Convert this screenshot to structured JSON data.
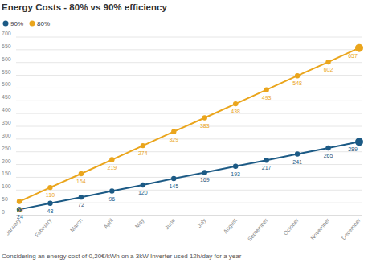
{
  "chart_data": {
    "type": "line",
    "title": "Energy Costs - 80% vs 90% efficiency",
    "footnote": "Considering an energy cost of 0,20€/kWh on a 3kW Inverter used 12h/day for a year",
    "categories": [
      "January",
      "February",
      "March",
      "April",
      "May",
      "June",
      "July",
      "August",
      "September",
      "October",
      "November",
      "December"
    ],
    "series": [
      {
        "name": "90%",
        "color": "#1c5a85",
        "marker": "circle",
        "values": [
          24,
          48,
          72,
          96,
          120,
          145,
          169,
          193,
          217,
          241,
          265,
          289
        ]
      },
      {
        "name": "80%",
        "color": "#eaa51c",
        "marker": "circle",
        "values": [
          55,
          110,
          164,
          219,
          274,
          329,
          383,
          438,
          493,
          548,
          602,
          657
        ]
      }
    ],
    "ylim": [
      0,
      700
    ],
    "yticks": [
      0,
      50,
      100,
      150,
      200,
      250,
      300,
      350,
      400,
      450,
      500,
      550,
      600,
      650,
      700
    ],
    "grid": true,
    "legend": "top-left",
    "data_labels": true
  }
}
